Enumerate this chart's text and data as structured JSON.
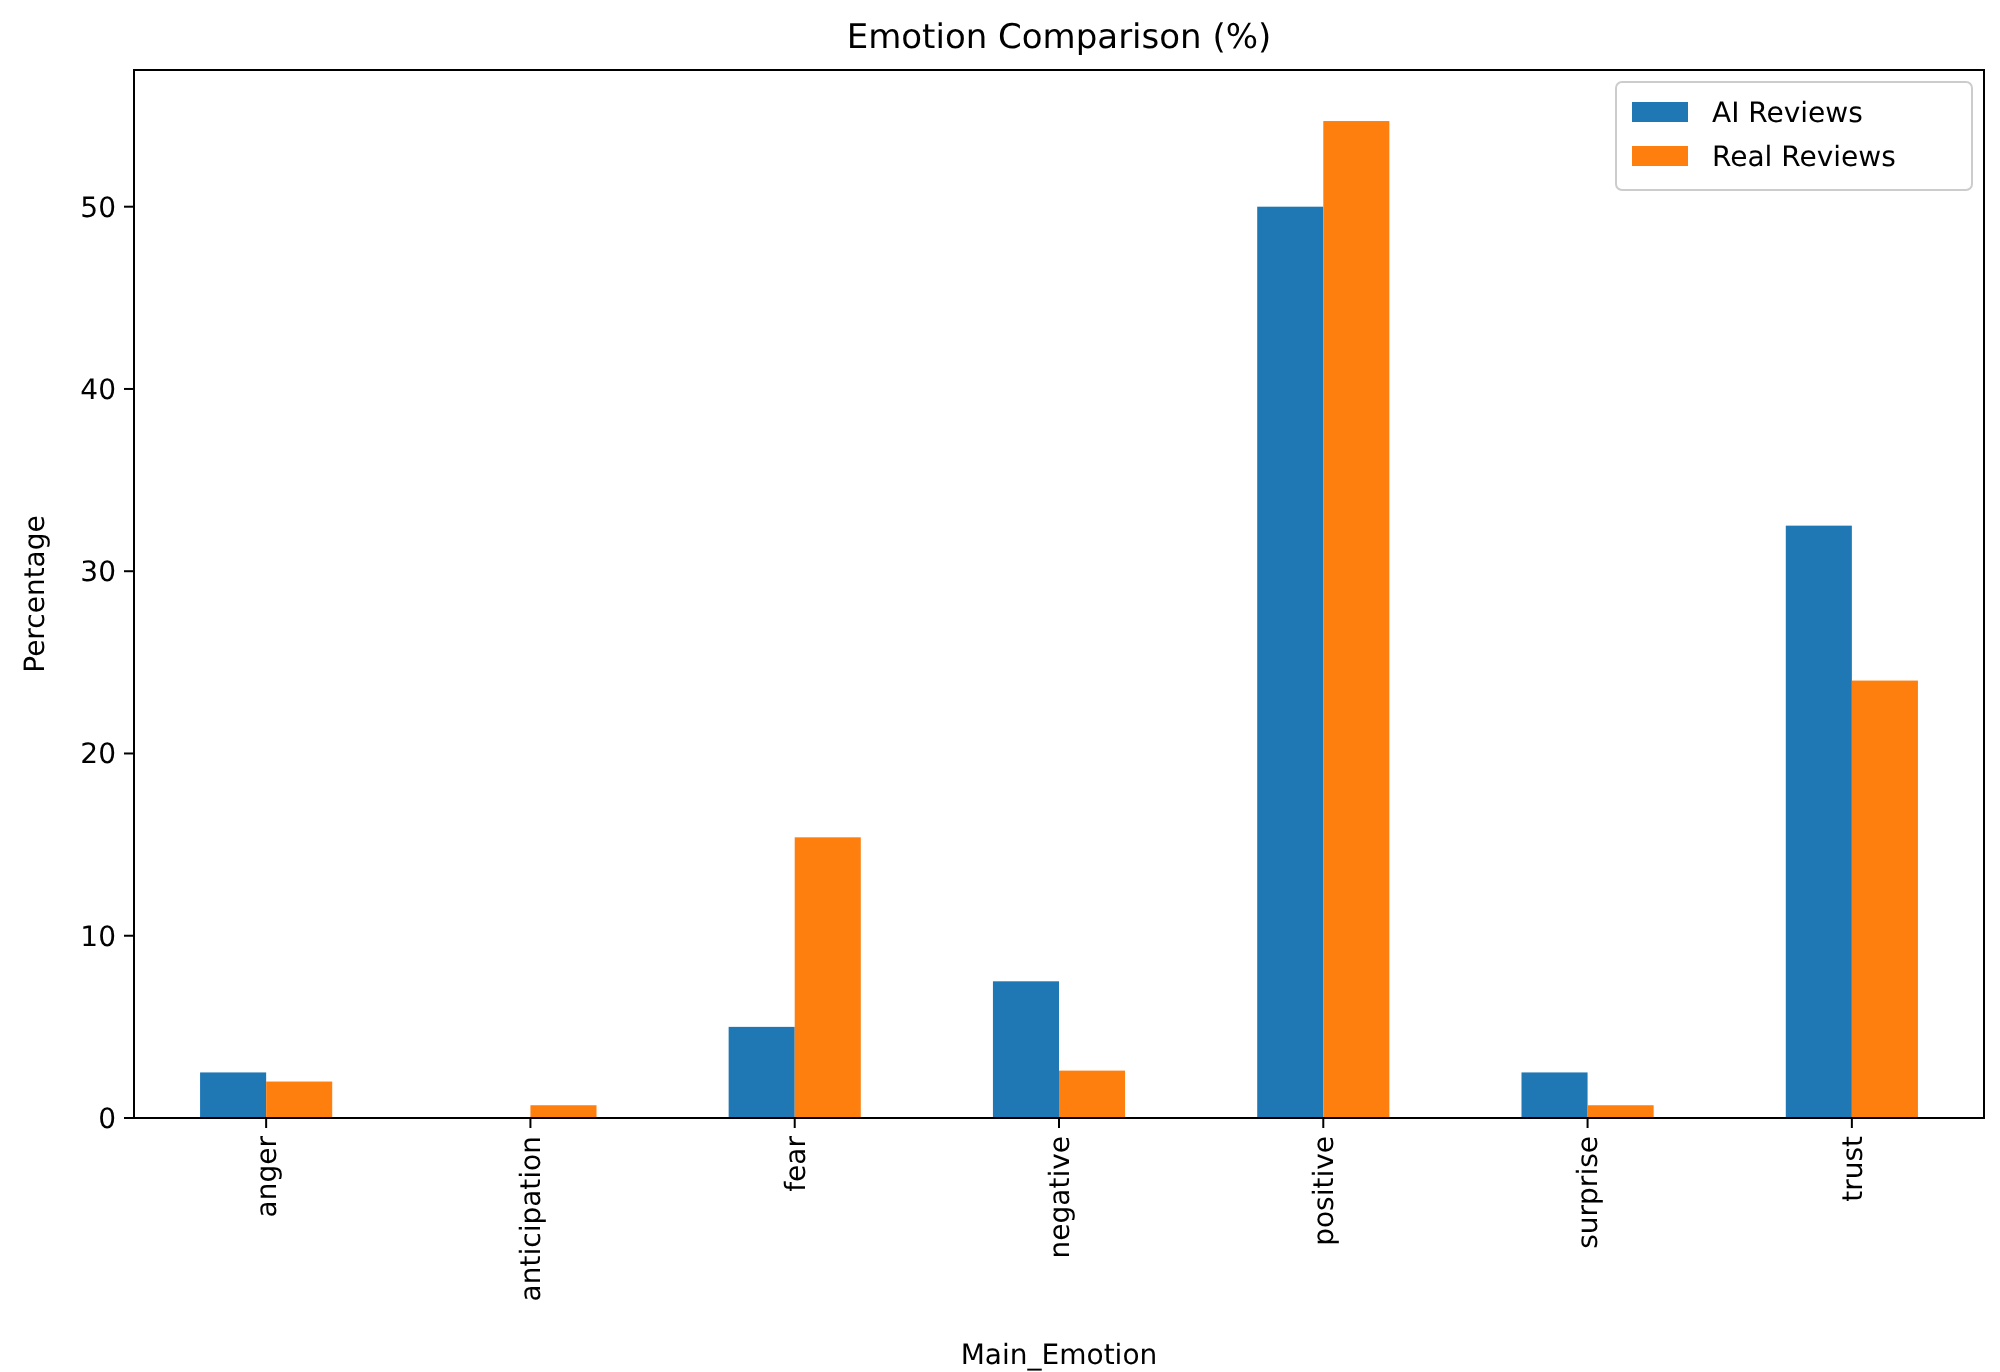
{
  "chart_data": {
    "type": "bar",
    "title": "Emotion Comparison (%)",
    "xlabel": "Main_Emotion",
    "ylabel": "Percentage",
    "categories": [
      "anger",
      "anticipation",
      "fear",
      "negative",
      "positive",
      "surprise",
      "trust"
    ],
    "series": [
      {
        "name": "AI Reviews",
        "color": "#1f77b4",
        "values": [
          2.5,
          0,
          5.0,
          7.5,
          50.0,
          2.5,
          32.5
        ]
      },
      {
        "name": "Real Reviews",
        "color": "#ff7f0e",
        "values": [
          2.0,
          0.7,
          15.4,
          2.6,
          54.7,
          0.7,
          24.0
        ]
      }
    ],
    "ylim": [
      0,
      57.5
    ],
    "yticks": [
      0,
      10,
      20,
      30,
      40,
      50
    ],
    "legend": "top right",
    "grid": false
  }
}
